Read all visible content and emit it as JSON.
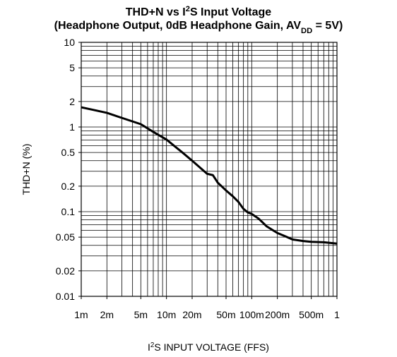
{
  "chart_data": {
    "type": "line",
    "title": [
      [
        {
          "text": "THD+N vs I"
        },
        {
          "text": "2",
          "sup": true
        },
        {
          "text": "S Input Voltage"
        }
      ],
      [
        {
          "text": "(Headphone Output, 0dB Headphone Gain, AV"
        },
        {
          "text": "DD",
          "sub": true
        },
        {
          "text": " = 5V)"
        }
      ]
    ],
    "xlabel": [
      {
        "text": "I"
      },
      {
        "text": "2",
        "sup": true
      },
      {
        "text": "S INPUT VOLTAGE (FFS)"
      }
    ],
    "ylabel": "THD+N (%)",
    "xscale": "log",
    "yscale": "log",
    "xlim": [
      0.001,
      1
    ],
    "ylim": [
      0.01,
      10
    ],
    "xticks": [
      {
        "value": 0.001,
        "label": "1m"
      },
      {
        "value": 0.002,
        "label": "2m"
      },
      {
        "value": 0.005,
        "label": "5m"
      },
      {
        "value": 0.01,
        "label": "10m"
      },
      {
        "value": 0.02,
        "label": "20m"
      },
      {
        "value": 0.05,
        "label": "50m"
      },
      {
        "value": 0.1,
        "label": "100m"
      },
      {
        "value": 0.2,
        "label": "200m"
      },
      {
        "value": 0.5,
        "label": "500m"
      },
      1
    ],
    "yticks": [
      0.01,
      0.02,
      0.05,
      0.1,
      0.2,
      0.5,
      1,
      2,
      5,
      10
    ],
    "xgrid": [
      0.001,
      0.002,
      0.003,
      0.004,
      0.005,
      0.006,
      0.007,
      0.008,
      0.009,
      0.01,
      0.02,
      0.03,
      0.04,
      0.05,
      0.06,
      0.07,
      0.08,
      0.09,
      0.1,
      0.2,
      0.3,
      0.4,
      0.5,
      0.6,
      0.7,
      0.8,
      0.9,
      1
    ],
    "ygrid": [
      0.01,
      0.02,
      0.03,
      0.04,
      0.05,
      0.06,
      0.07,
      0.08,
      0.09,
      0.1,
      0.2,
      0.3,
      0.4,
      0.5,
      0.6,
      0.7,
      0.8,
      0.9,
      1,
      2,
      3,
      4,
      5,
      6,
      7,
      8,
      9,
      10
    ],
    "grid": true,
    "x": [
      0.001,
      0.002,
      0.003,
      0.005,
      0.007,
      0.01,
      0.015,
      0.02,
      0.03,
      0.035,
      0.04,
      0.05,
      0.06,
      0.07,
      0.08,
      0.09,
      0.1,
      0.12,
      0.15,
      0.2,
      0.25,
      0.3,
      0.4,
      0.5,
      0.7,
      1
    ],
    "series": [
      {
        "color": "#000000",
        "values": [
          1.71,
          1.47,
          1.28,
          1.08,
          0.875,
          0.71,
          0.51,
          0.4,
          0.28,
          0.27,
          0.22,
          0.178,
          0.152,
          0.13,
          0.108,
          0.098,
          0.094,
          0.083,
          0.067,
          0.056,
          0.051,
          0.047,
          0.045,
          0.044,
          0.0435,
          0.042
        ]
      }
    ]
  }
}
